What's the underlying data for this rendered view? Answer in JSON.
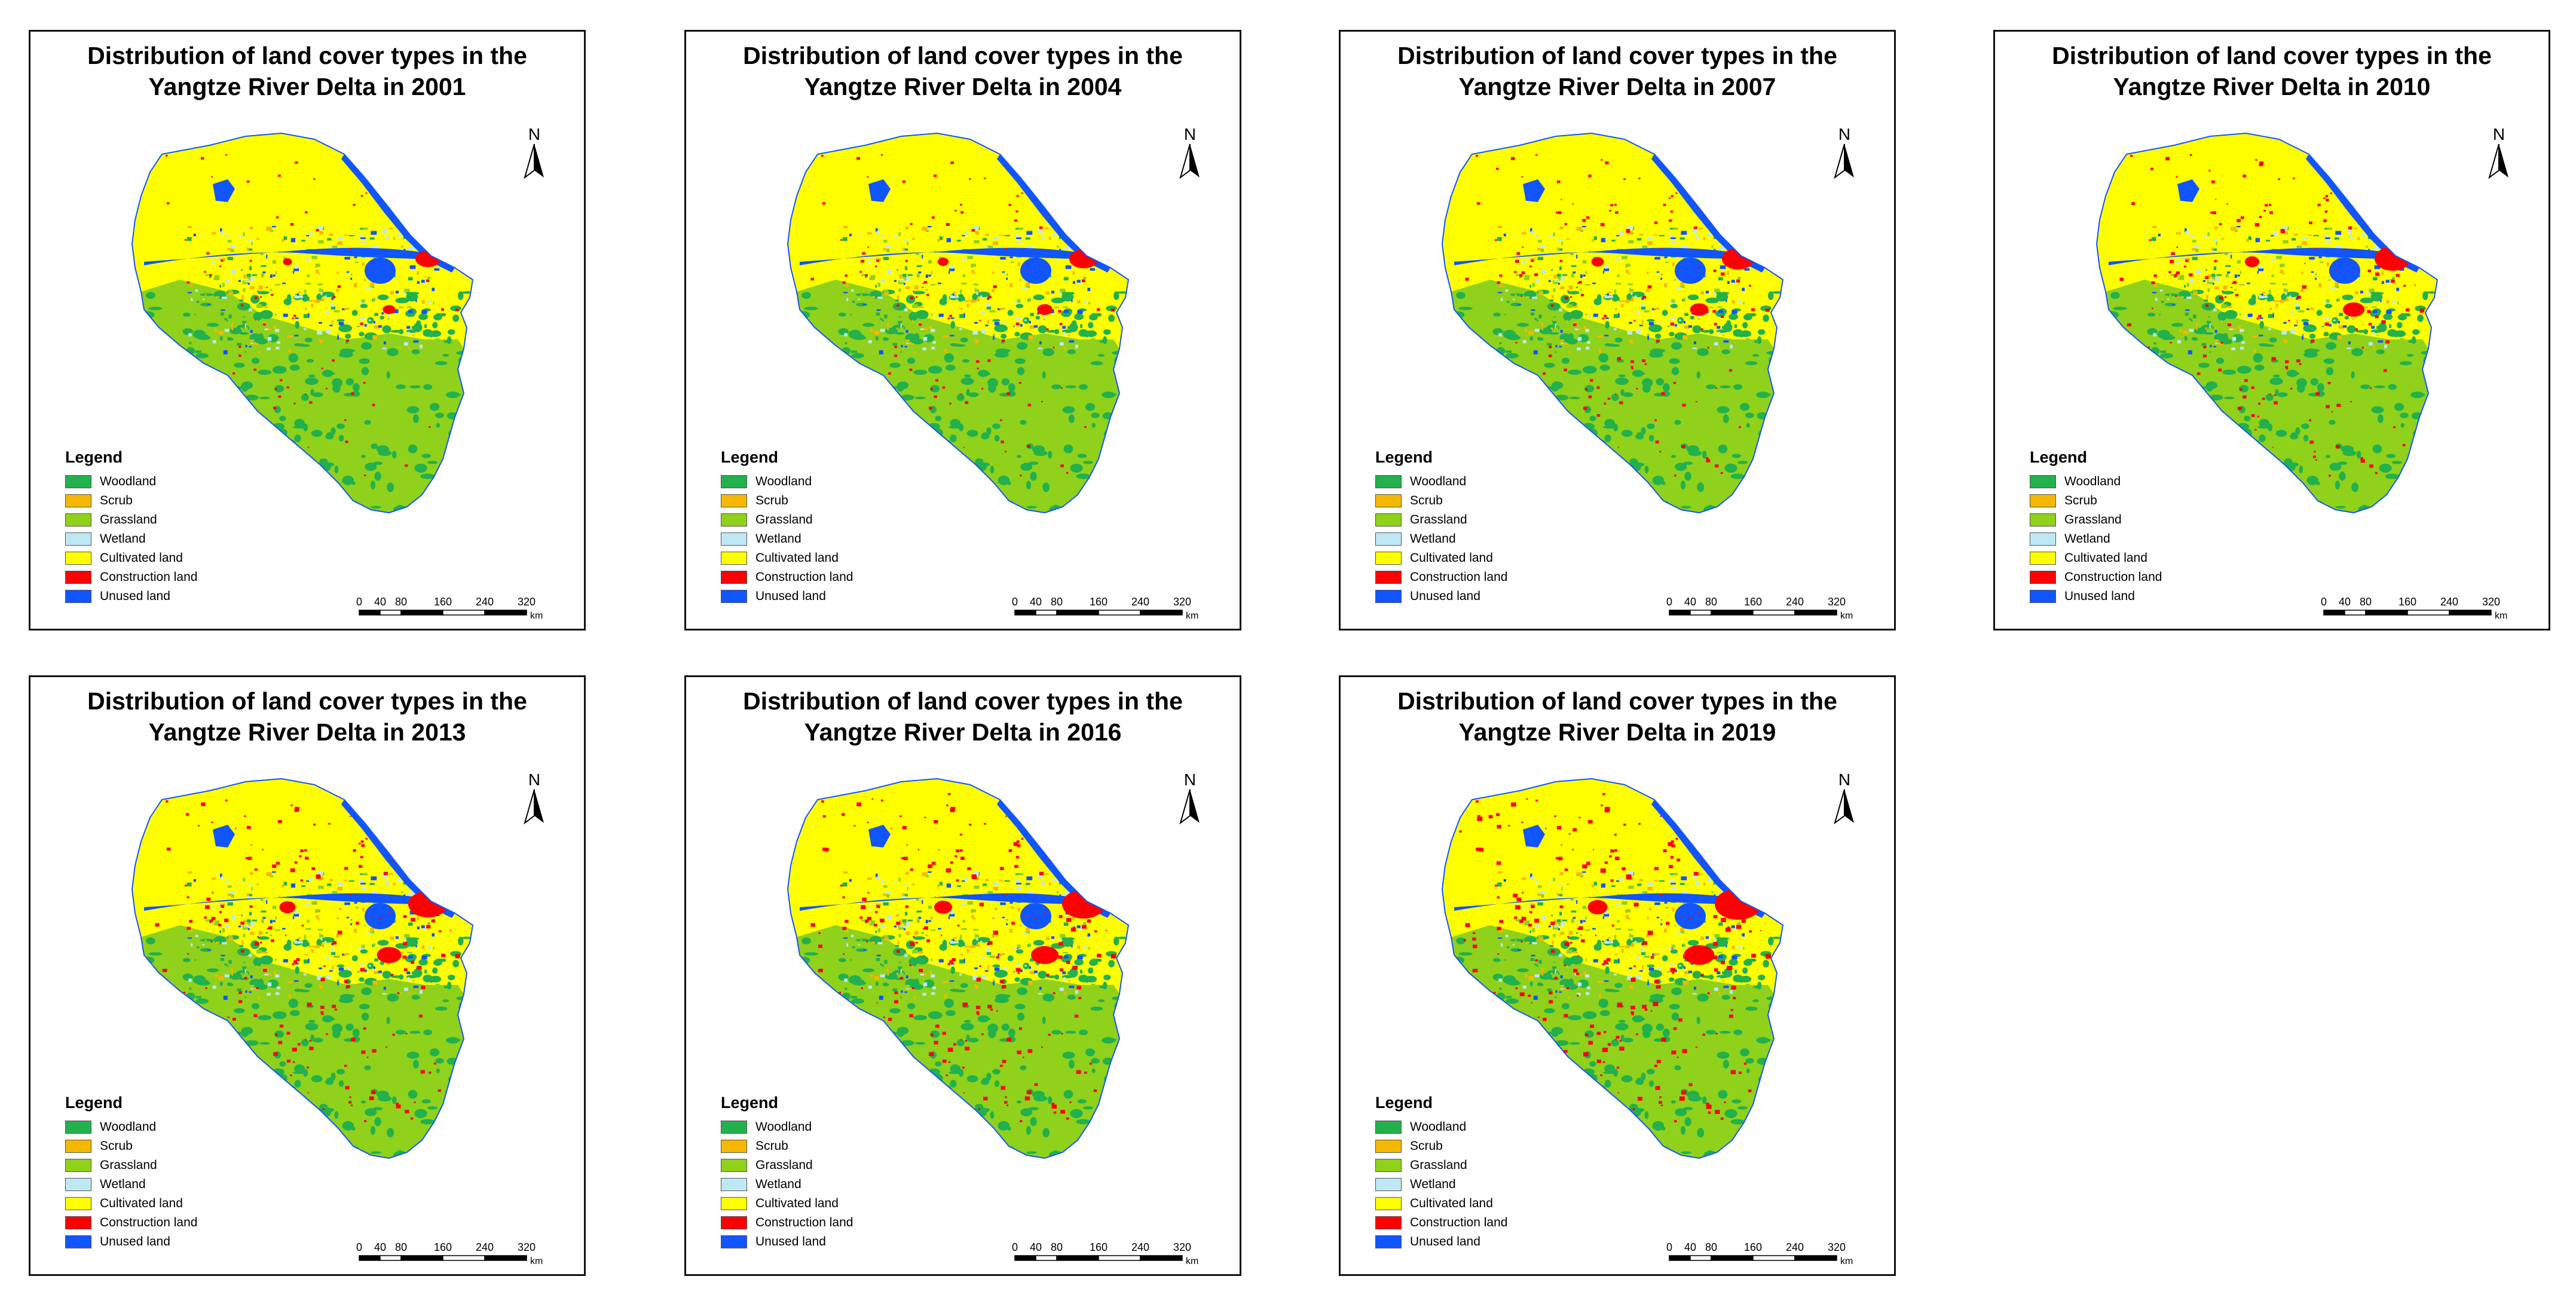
{
  "title_template": "Distribution of land cover types in the Yangtze River Delta in {year}",
  "panels": [
    {
      "title_line1": "Distribution of land cover types in the",
      "title_line2": "Yangtze River Delta in 2001",
      "year": "2001",
      "construction_level": 1
    },
    {
      "title_line1": "Distribution of land cover types in the",
      "title_line2": "Yangtze River Delta in 2004",
      "year": "2004",
      "construction_level": 2
    },
    {
      "title_line1": "Distribution of land cover types in the",
      "title_line2": "Yangtze River Delta in 2007",
      "year": "2007",
      "construction_level": 3
    },
    {
      "title_line1": "Distribution of land cover types in the",
      "title_line2": "Yangtze River Delta in 2010",
      "year": "2010",
      "construction_level": 4
    },
    {
      "title_line1": "Distribution of land cover types in the",
      "title_line2": "Yangtze River Delta in 2013",
      "year": "2013",
      "construction_level": 5
    },
    {
      "title_line1": "Distribution of land cover types in the",
      "title_line2": "Yangtze River Delta in 2016",
      "year": "2016",
      "construction_level": 6
    },
    {
      "title_line1": "Distribution of land cover types in the",
      "title_line2": "Yangtze River Delta in 2019",
      "year": "2019",
      "construction_level": 7
    }
  ],
  "north_label": "N",
  "legend": {
    "title": "Legend",
    "items": [
      {
        "label": "Woodland",
        "color": "#22b14c"
      },
      {
        "label": "Scrub",
        "color": "#f5b800"
      },
      {
        "label": "Grassland",
        "color": "#8fd11b"
      },
      {
        "label": "Wetland",
        "color": "#bfe8f5"
      },
      {
        "label": "Cultivated land",
        "color": "#ffff00"
      },
      {
        "label": "Construction land",
        "color": "#ff0000"
      },
      {
        "label": "Unused land",
        "color": "#1155ff"
      }
    ]
  },
  "scalebar": {
    "ticks": [
      "0",
      "40",
      "80",
      "160",
      "240",
      "320"
    ],
    "unit": "km"
  }
}
